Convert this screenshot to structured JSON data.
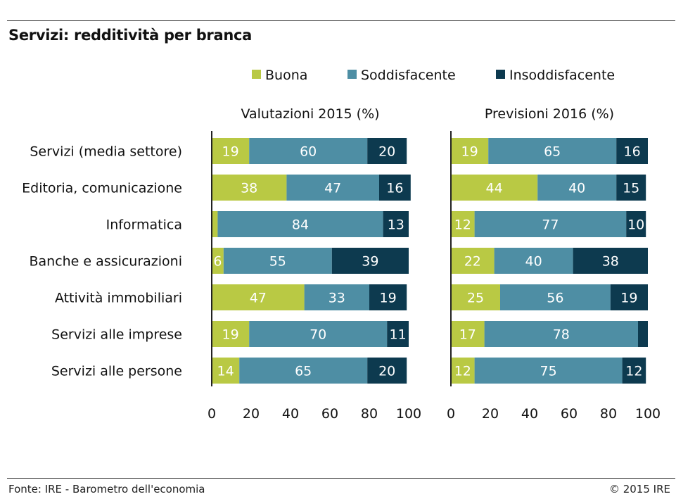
{
  "title": "Servizi: redditività per branca",
  "source": "Fonte: IRE - Barometro dell'economia",
  "copyright": "© 2015 IRE",
  "chart_data": {
    "type": "bar",
    "orientation": "horizontal",
    "stacked": true,
    "legend_position": "top",
    "categories": [
      "Servizi (media settore)",
      "Editoria, comunicazione",
      "Informatica",
      "Banche e assicurazioni",
      "Attività immobiliari",
      "Servizi alle imprese",
      "Servizi alle persone"
    ],
    "series_meta": [
      {
        "name": "Buona",
        "color": "#b9c944"
      },
      {
        "name": "Soddisfacente",
        "color": "#4e8ea4"
      },
      {
        "name": "Insoddisfacente",
        "color": "#0d3a4f"
      }
    ],
    "xlim": [
      0,
      100
    ],
    "xticks": [
      "0",
      "20",
      "40",
      "60",
      "80",
      "100"
    ],
    "panels": [
      {
        "title": "Valutazioni 2015 (%)",
        "series": [
          {
            "name": "Buona",
            "values": [
              19,
              38,
              3,
              6,
              47,
              19,
              14
            ],
            "labels": [
              "19",
              "38",
              "",
              "6",
              "47",
              "19",
              "14"
            ]
          },
          {
            "name": "Soddisfacente",
            "values": [
              60,
              47,
              84,
              55,
              33,
              70,
              65
            ],
            "labels": [
              "60",
              "47",
              "84",
              "55",
              "33",
              "70",
              "65"
            ]
          },
          {
            "name": "Insoddisfacente",
            "values": [
              20,
              16,
              13,
              39,
              19,
              11,
              20
            ],
            "labels": [
              "20",
              "16",
              "13",
              "39",
              "19",
              "11",
              "20"
            ]
          }
        ]
      },
      {
        "title": "Previsioni 2016 (%)",
        "series": [
          {
            "name": "Buona",
            "values": [
              19,
              44,
              12,
              22,
              25,
              17,
              12
            ],
            "labels": [
              "19",
              "44",
              "12",
              "22",
              "25",
              "17",
              "12"
            ]
          },
          {
            "name": "Soddisfacente",
            "values": [
              65,
              40,
              77,
              40,
              56,
              78,
              75
            ],
            "labels": [
              "65",
              "40",
              "77",
              "40",
              "56",
              "78",
              "75"
            ]
          },
          {
            "name": "Insoddisfacente",
            "values": [
              16,
              15,
              10,
              38,
              19,
              5,
              12
            ],
            "labels": [
              "16",
              "15",
              "10",
              "38",
              "19",
              "",
              "12"
            ]
          }
        ]
      }
    ]
  }
}
